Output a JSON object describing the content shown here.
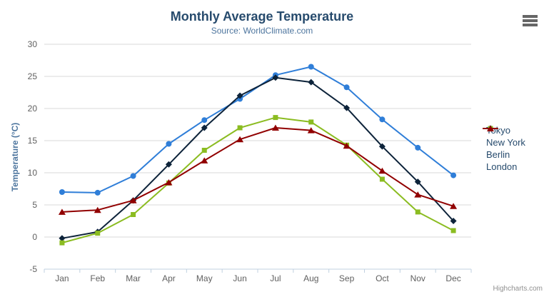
{
  "header": {
    "title": "Monthly Average Temperature",
    "subtitle": "Source: WorldClimate.com"
  },
  "menu": {
    "icon": "hamburger-icon"
  },
  "credits": {
    "label": "Highcharts.com"
  },
  "theme": {
    "background": "#ffffff",
    "title_color": "#274b6d",
    "subtitle_color": "#4d759e",
    "axis_title_color": "#4d759e",
    "axis_label_color": "#606060",
    "grid_color": "#d8d8d8",
    "axis_line_color": "#c0d0e0",
    "legend_text_color": "#274b6d",
    "credits_color": "#909090"
  },
  "chart_data": {
    "type": "line",
    "title": "Monthly Average Temperature",
    "subtitle": "Source: WorldClimate.com",
    "categories": [
      "Jan",
      "Feb",
      "Mar",
      "Apr",
      "May",
      "Jun",
      "Jul",
      "Aug",
      "Sep",
      "Oct",
      "Nov",
      "Dec"
    ],
    "series": [
      {
        "name": "Tokyo",
        "color": "#2f7ed8",
        "marker": "circle",
        "values": [
          7.0,
          6.9,
          9.5,
          14.5,
          18.2,
          21.5,
          25.2,
          26.5,
          23.3,
          18.3,
          13.9,
          9.6
        ]
      },
      {
        "name": "New York",
        "color": "#0d233a",
        "marker": "diamond",
        "values": [
          -0.2,
          0.8,
          5.7,
          11.3,
          17.0,
          22.0,
          24.8,
          24.1,
          20.1,
          14.1,
          8.6,
          2.5
        ]
      },
      {
        "name": "Berlin",
        "color": "#8bbc21",
        "marker": "square",
        "values": [
          -0.9,
          0.6,
          3.5,
          8.4,
          13.5,
          17.0,
          18.6,
          17.9,
          14.3,
          9.0,
          3.9,
          1.0
        ]
      },
      {
        "name": "London",
        "color": "#910000",
        "marker": "triangle",
        "values": [
          3.9,
          4.2,
          5.7,
          8.5,
          11.9,
          15.2,
          17.0,
          16.6,
          14.2,
          10.3,
          6.6,
          4.8
        ]
      }
    ],
    "xlabel": "",
    "ylabel": "Temperature (°C)",
    "ylim": [
      -5,
      30
    ],
    "ytick_step": 5,
    "grid": true,
    "legend_position": "right"
  }
}
